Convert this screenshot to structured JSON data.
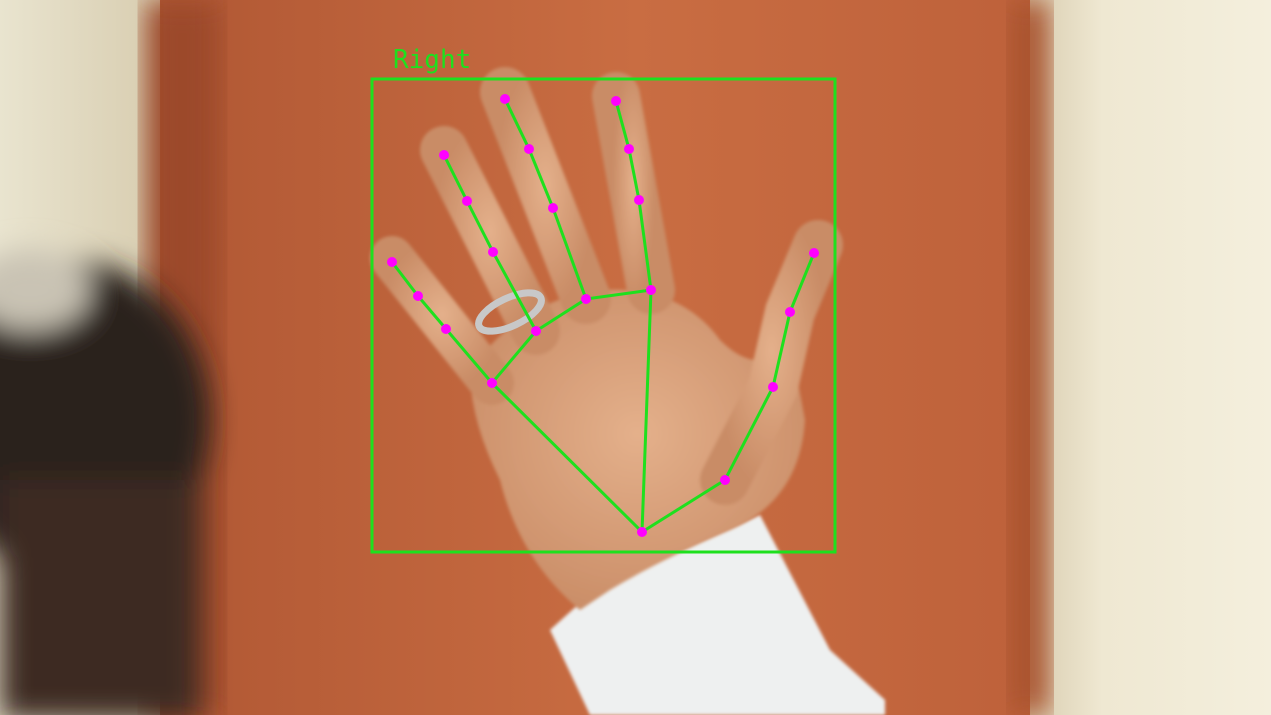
{
  "label": "Right"
}
